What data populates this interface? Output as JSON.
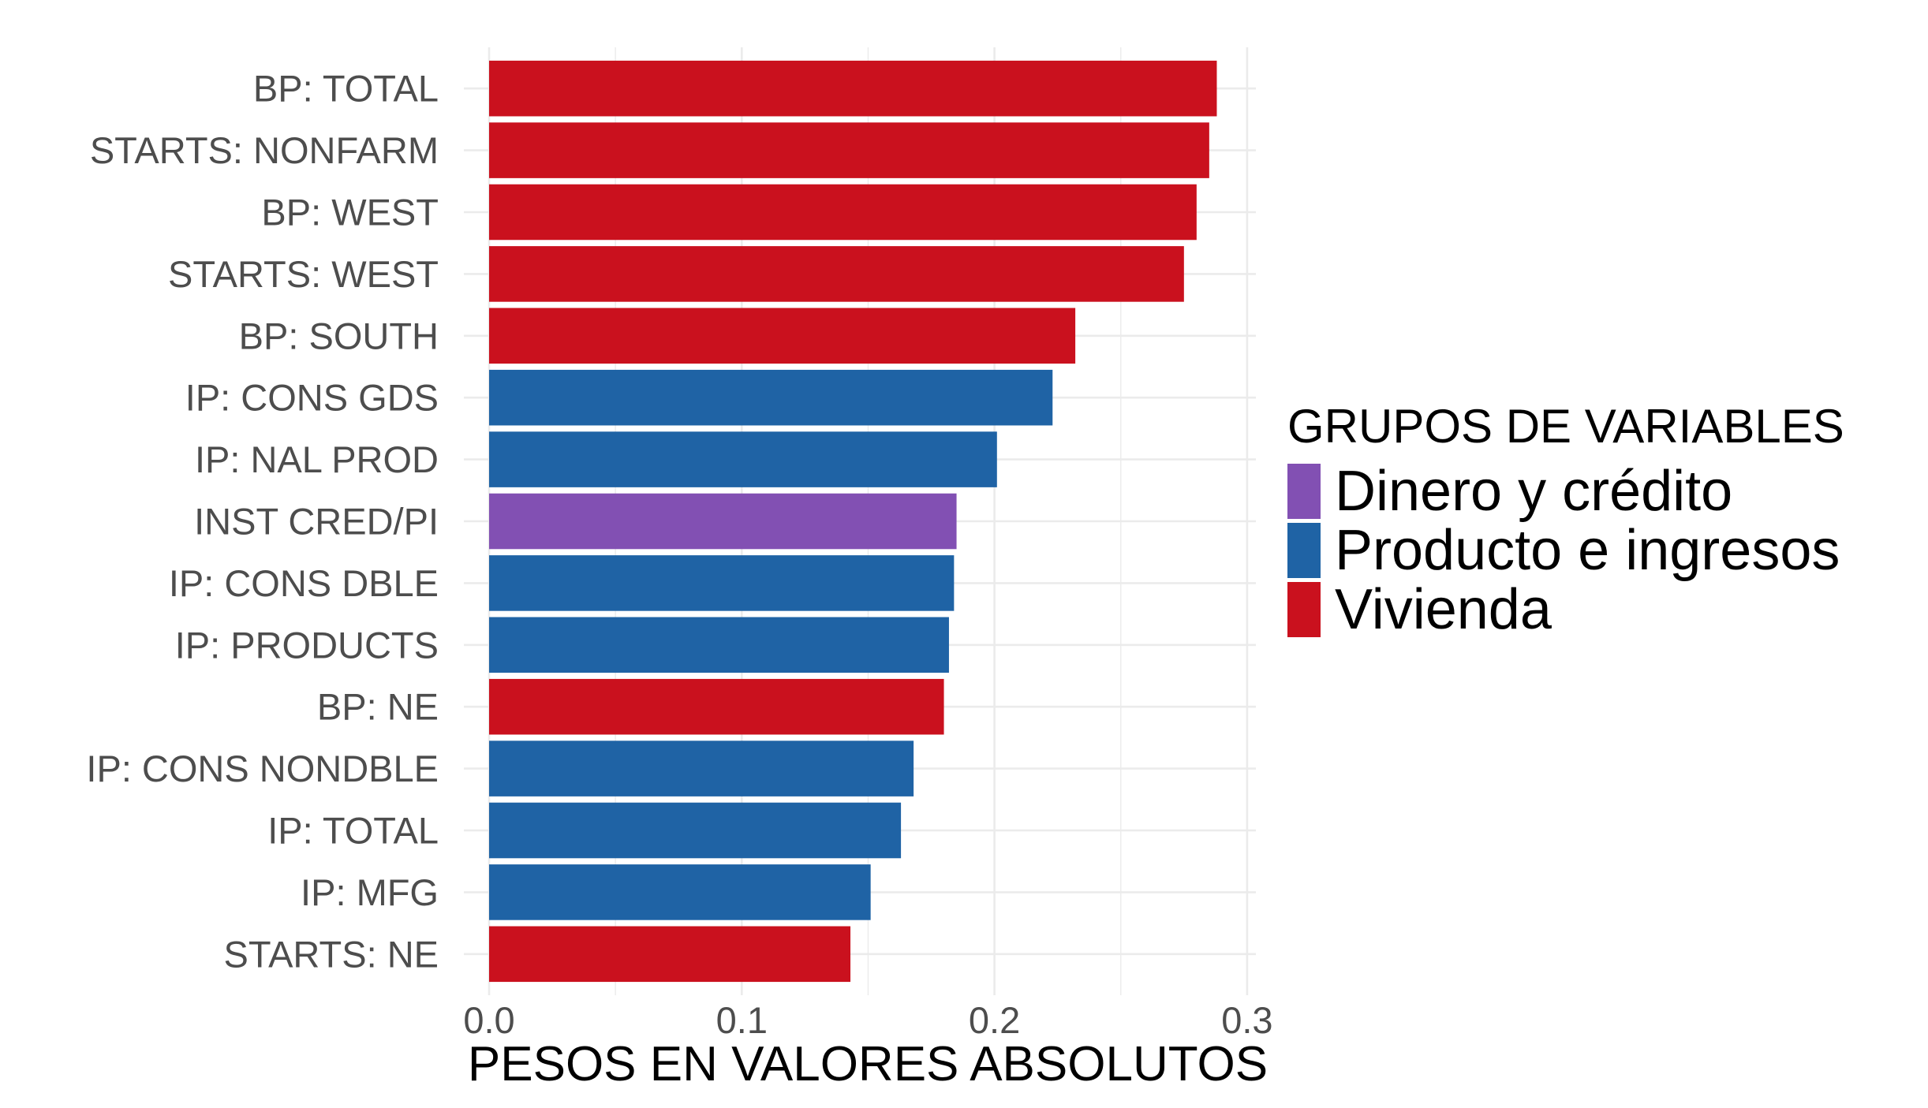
{
  "chart_data": {
    "type": "bar",
    "orientation": "horizontal",
    "title": "",
    "xlabel": "PESOS EN VALORES ABSOLUTOS",
    "ylabel": "",
    "xlim": [
      0,
      0.3
    ],
    "x_ticks": [
      "0.0",
      "0.1",
      "0.2",
      "0.3"
    ],
    "x_tick_values": [
      0,
      0.1,
      0.2,
      0.3
    ],
    "grid": true,
    "legend": {
      "title": "GRUPOS DE VARIABLES",
      "placement": "right",
      "entries": [
        {
          "name": "Dinero y crédito",
          "color": "#8250b3"
        },
        {
          "name": "Producto e ingresos",
          "color": "#1f63a5"
        },
        {
          "name": "Vivienda",
          "color": "#ca111e"
        }
      ]
    },
    "categories": [
      "BP: TOTAL",
      "STARTS: NONFARM",
      "BP: WEST",
      "STARTS: WEST",
      "BP: SOUTH",
      "IP: CONS GDS",
      "IP: NAL PROD",
      "INST CRED/PI",
      "IP: CONS DBLE",
      "IP: PRODUCTS",
      "BP: NE",
      "IP: CONS NONDBLE",
      "IP: TOTAL",
      "IP: MFG",
      "STARTS: NE"
    ],
    "values": [
      0.288,
      0.285,
      0.28,
      0.275,
      0.232,
      0.223,
      0.201,
      0.185,
      0.184,
      0.182,
      0.18,
      0.168,
      0.163,
      0.151,
      0.143
    ],
    "groups": [
      "Vivienda",
      "Vivienda",
      "Vivienda",
      "Vivienda",
      "Vivienda",
      "Producto e ingresos",
      "Producto e ingresos",
      "Dinero y crédito",
      "Producto e ingresos",
      "Producto e ingresos",
      "Vivienda",
      "Producto e ingresos",
      "Producto e ingresos",
      "Producto e ingresos",
      "Vivienda"
    ]
  }
}
